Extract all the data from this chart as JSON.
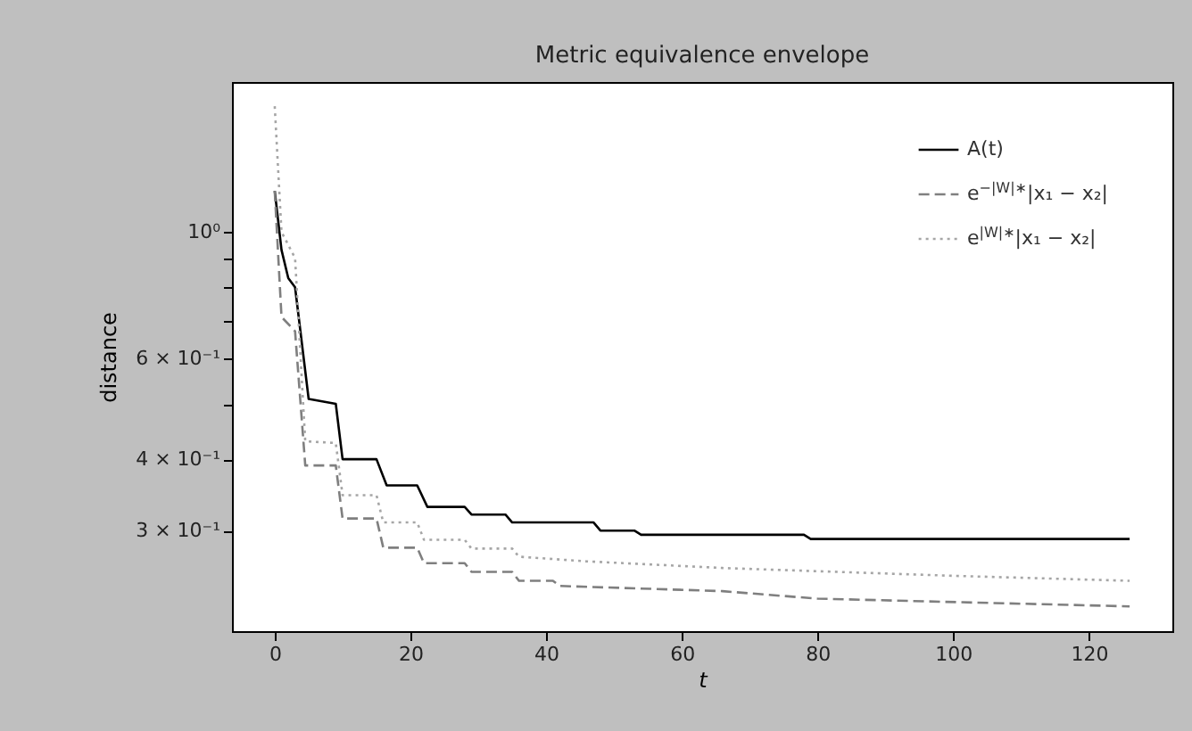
{
  "chart_data": {
    "type": "line",
    "title": "Metric equivalence envelope",
    "xlabel": "t",
    "ylabel": "distance",
    "log": "y",
    "xlim": [
      -6.3,
      132.3
    ],
    "xticks": [
      0,
      20,
      40,
      60,
      80,
      100,
      120
    ],
    "ylim": [
      0.2,
      1.83
    ],
    "yticks": [
      {
        "value": 0.3,
        "label": "3 × 10⁻¹"
      },
      {
        "value": 0.4,
        "label": "4 × 10⁻¹"
      },
      {
        "value": 0.5,
        "label": null
      },
      {
        "value": 0.6,
        "label": "6 × 10⁻¹"
      },
      {
        "value": 0.7,
        "label": null
      },
      {
        "value": 0.8,
        "label": null
      },
      {
        "value": 0.9,
        "label": null
      },
      {
        "value": 1,
        "label": "10⁰"
      }
    ],
    "legend": "top right",
    "grid": false,
    "series": [
      {
        "name": "A(t)",
        "color": "#000000",
        "line_style": "solid",
        "x": [
          0,
          1,
          2,
          3,
          5,
          9,
          10,
          15,
          16.5,
          21,
          22.5,
          28,
          29,
          34,
          35,
          47,
          48,
          53,
          54,
          78,
          79,
          126
        ],
        "values": [
          1.18,
          0.93,
          0.83,
          0.8,
          0.51,
          0.5,
          0.4,
          0.4,
          0.36,
          0.36,
          0.33,
          0.33,
          0.32,
          0.32,
          0.31,
          0.31,
          0.3,
          0.3,
          0.295,
          0.295,
          0.29,
          0.29
        ]
      },
      {
        "name": "e$^{−|W|∗}$|x₁ − x₂|",
        "color": "#7f7f7f",
        "line_style": "dashed",
        "x": [
          0,
          1,
          3,
          4.5,
          9,
          10,
          15,
          16,
          21,
          22,
          28,
          29,
          35,
          36,
          41,
          42,
          66,
          80,
          126
        ],
        "values": [
          1.18,
          0.71,
          0.67,
          0.39,
          0.39,
          0.315,
          0.315,
          0.28,
          0.28,
          0.263,
          0.263,
          0.254,
          0.254,
          0.245,
          0.245,
          0.24,
          0.235,
          0.228,
          0.221
        ]
      },
      {
        "name": "e$^{|W|∗}$|x₁ − x₂|",
        "color": "#a6a6a6",
        "line_style": "dotted",
        "x": [
          0,
          1,
          3,
          4.5,
          9,
          10,
          15,
          16,
          21,
          22,
          28,
          29,
          35,
          36,
          46,
          66,
          100,
          126
        ],
        "values": [
          1.66,
          1.0,
          0.9,
          0.43,
          0.427,
          0.346,
          0.346,
          0.31,
          0.31,
          0.289,
          0.289,
          0.279,
          0.279,
          0.27,
          0.265,
          0.258,
          0.25,
          0.245
        ]
      }
    ]
  }
}
